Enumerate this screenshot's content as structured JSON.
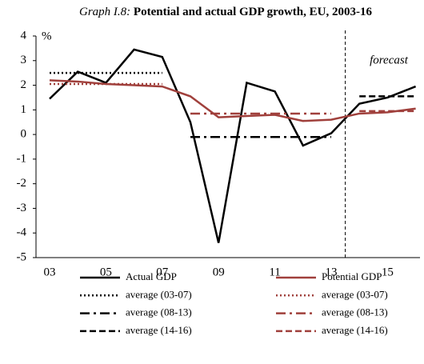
{
  "chart_data": {
    "type": "line",
    "title_label": "Graph I.8:",
    "title": "Potential and actual GDP growth, EU, 2003-16",
    "ylabel": "%",
    "annotation": "forecast",
    "categories": [
      "03",
      null,
      "05",
      null,
      "07",
      null,
      "09",
      null,
      "11",
      null,
      "13",
      null,
      "15",
      null
    ],
    "ylim": [
      -5,
      4
    ],
    "yticks": [
      -5,
      -4,
      -3,
      -2,
      -1,
      0,
      1,
      2,
      3,
      4
    ],
    "grid": false,
    "series": [
      {
        "name": "Actual GDP",
        "color": "#000000",
        "style": "solid",
        "values": [
          1.45,
          2.55,
          2.1,
          3.45,
          3.15,
          0.5,
          -4.4,
          2.1,
          1.75,
          -0.45,
          0.05,
          1.25,
          1.5,
          1.95
        ]
      },
      {
        "name": "Potential GDP",
        "color": "#a0403c",
        "style": "solid",
        "values": [
          2.2,
          2.15,
          2.05,
          2.0,
          1.95,
          1.55,
          0.7,
          0.75,
          0.8,
          0.55,
          0.6,
          0.85,
          0.9,
          1.05
        ]
      },
      {
        "name": "average (03-07)",
        "color": "#000000",
        "style": "dotted",
        "values": [
          2.5,
          2.5,
          2.5,
          2.5,
          2.5,
          null,
          null,
          null,
          null,
          null,
          null,
          null,
          null,
          null
        ]
      },
      {
        "name": "average (03-07)",
        "color": "#a0403c",
        "style": "dotted",
        "values": [
          2.05,
          2.05,
          2.05,
          2.05,
          2.05,
          null,
          null,
          null,
          null,
          null,
          null,
          null,
          null,
          null
        ]
      },
      {
        "name": "average (08-13)",
        "color": "#000000",
        "style": "dashdot",
        "values": [
          null,
          null,
          null,
          null,
          null,
          -0.1,
          -0.1,
          -0.1,
          -0.1,
          -0.1,
          -0.1,
          null,
          null,
          null
        ]
      },
      {
        "name": "average (08-13)",
        "color": "#a0403c",
        "style": "dashdot",
        "values": [
          null,
          null,
          null,
          null,
          null,
          0.85,
          0.85,
          0.85,
          0.85,
          0.85,
          0.85,
          null,
          null,
          null
        ]
      },
      {
        "name": "average (14-16)",
        "color": "#000000",
        "style": "dashed",
        "values": [
          null,
          null,
          null,
          null,
          null,
          null,
          null,
          null,
          null,
          null,
          null,
          1.55,
          1.55,
          1.55
        ]
      },
      {
        "name": "average (14-16)",
        "color": "#a0403c",
        "style": "dashed",
        "values": [
          null,
          null,
          null,
          null,
          null,
          null,
          null,
          null,
          null,
          null,
          null,
          0.95,
          0.95,
          0.95
        ]
      }
    ]
  }
}
